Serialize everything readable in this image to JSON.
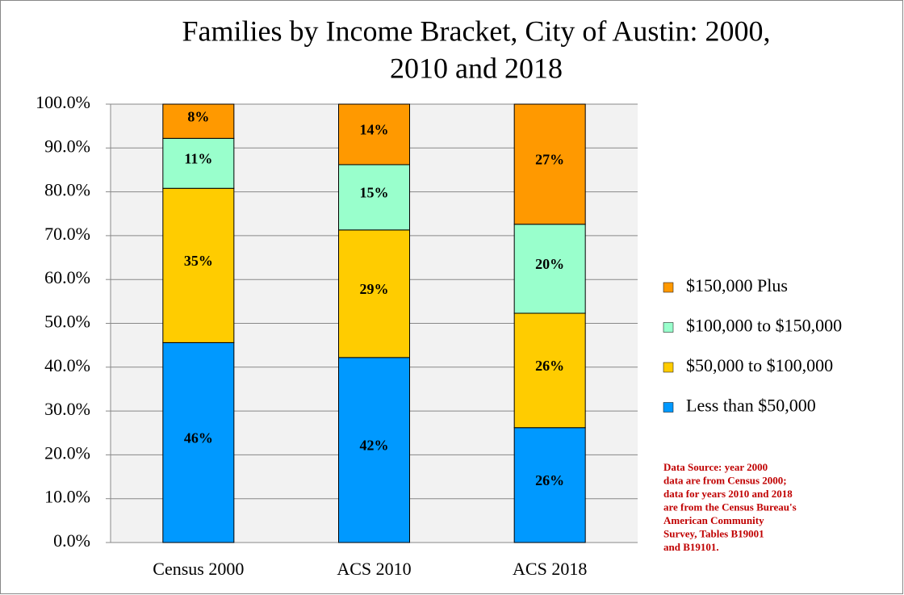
{
  "chart_data": {
    "type": "stacked_bar",
    "title": [
      "Families by Income Bracket, City of Austin: 2000,",
      "2010 and 2018"
    ],
    "categories": [
      "Census 2000",
      "ACS 2010",
      "ACS 2018"
    ],
    "series": [
      {
        "name": "Less than $50,000",
        "color": "#0099ff",
        "values": [
          45.6,
          42.2,
          26.2
        ],
        "value_labels": [
          "46%",
          "42%",
          "26%"
        ]
      },
      {
        "name": "$50,000 to $100,000",
        "color": "#ffcc00",
        "values": [
          35.2,
          29.1,
          26.1
        ],
        "value_labels": [
          "35%",
          "29%",
          "26%"
        ]
      },
      {
        "name": "$100,000 to $150,000",
        "color": "#99ffcc",
        "values": [
          11.4,
          14.9,
          20.3
        ],
        "value_labels": [
          "11%",
          "15%",
          "20%"
        ]
      },
      {
        "name": "$150,000 Plus",
        "color": "#ff9900",
        "values": [
          7.8,
          13.8,
          27.4
        ],
        "value_labels": [
          "8%",
          "14%",
          "27%"
        ]
      }
    ],
    "ylim": [
      0,
      100
    ],
    "yticks": [
      {
        "value": 0,
        "label": "0.0%"
      },
      {
        "value": 10,
        "label": "10.0%"
      },
      {
        "value": 20,
        "label": "20.0%"
      },
      {
        "value": 30,
        "label": "30.0%"
      },
      {
        "value": 40,
        "label": "40.0%"
      },
      {
        "value": 50,
        "label": "50.0%"
      },
      {
        "value": 60,
        "label": "60.0%"
      },
      {
        "value": 70,
        "label": "70.0%"
      },
      {
        "value": 80,
        "label": "80.0%"
      },
      {
        "value": 90,
        "label": "90.0%"
      },
      {
        "value": 100,
        "label": "100.0%"
      }
    ],
    "grid": true,
    "legend": "right",
    "annotation": [
      "Data Source: year 2000",
      "data are from Census 2000;",
      "data for years 2010 and 2018",
      "are from the Census Bureau's",
      "American Community",
      "Survey, Tables B19001",
      "and B19101."
    ]
  }
}
